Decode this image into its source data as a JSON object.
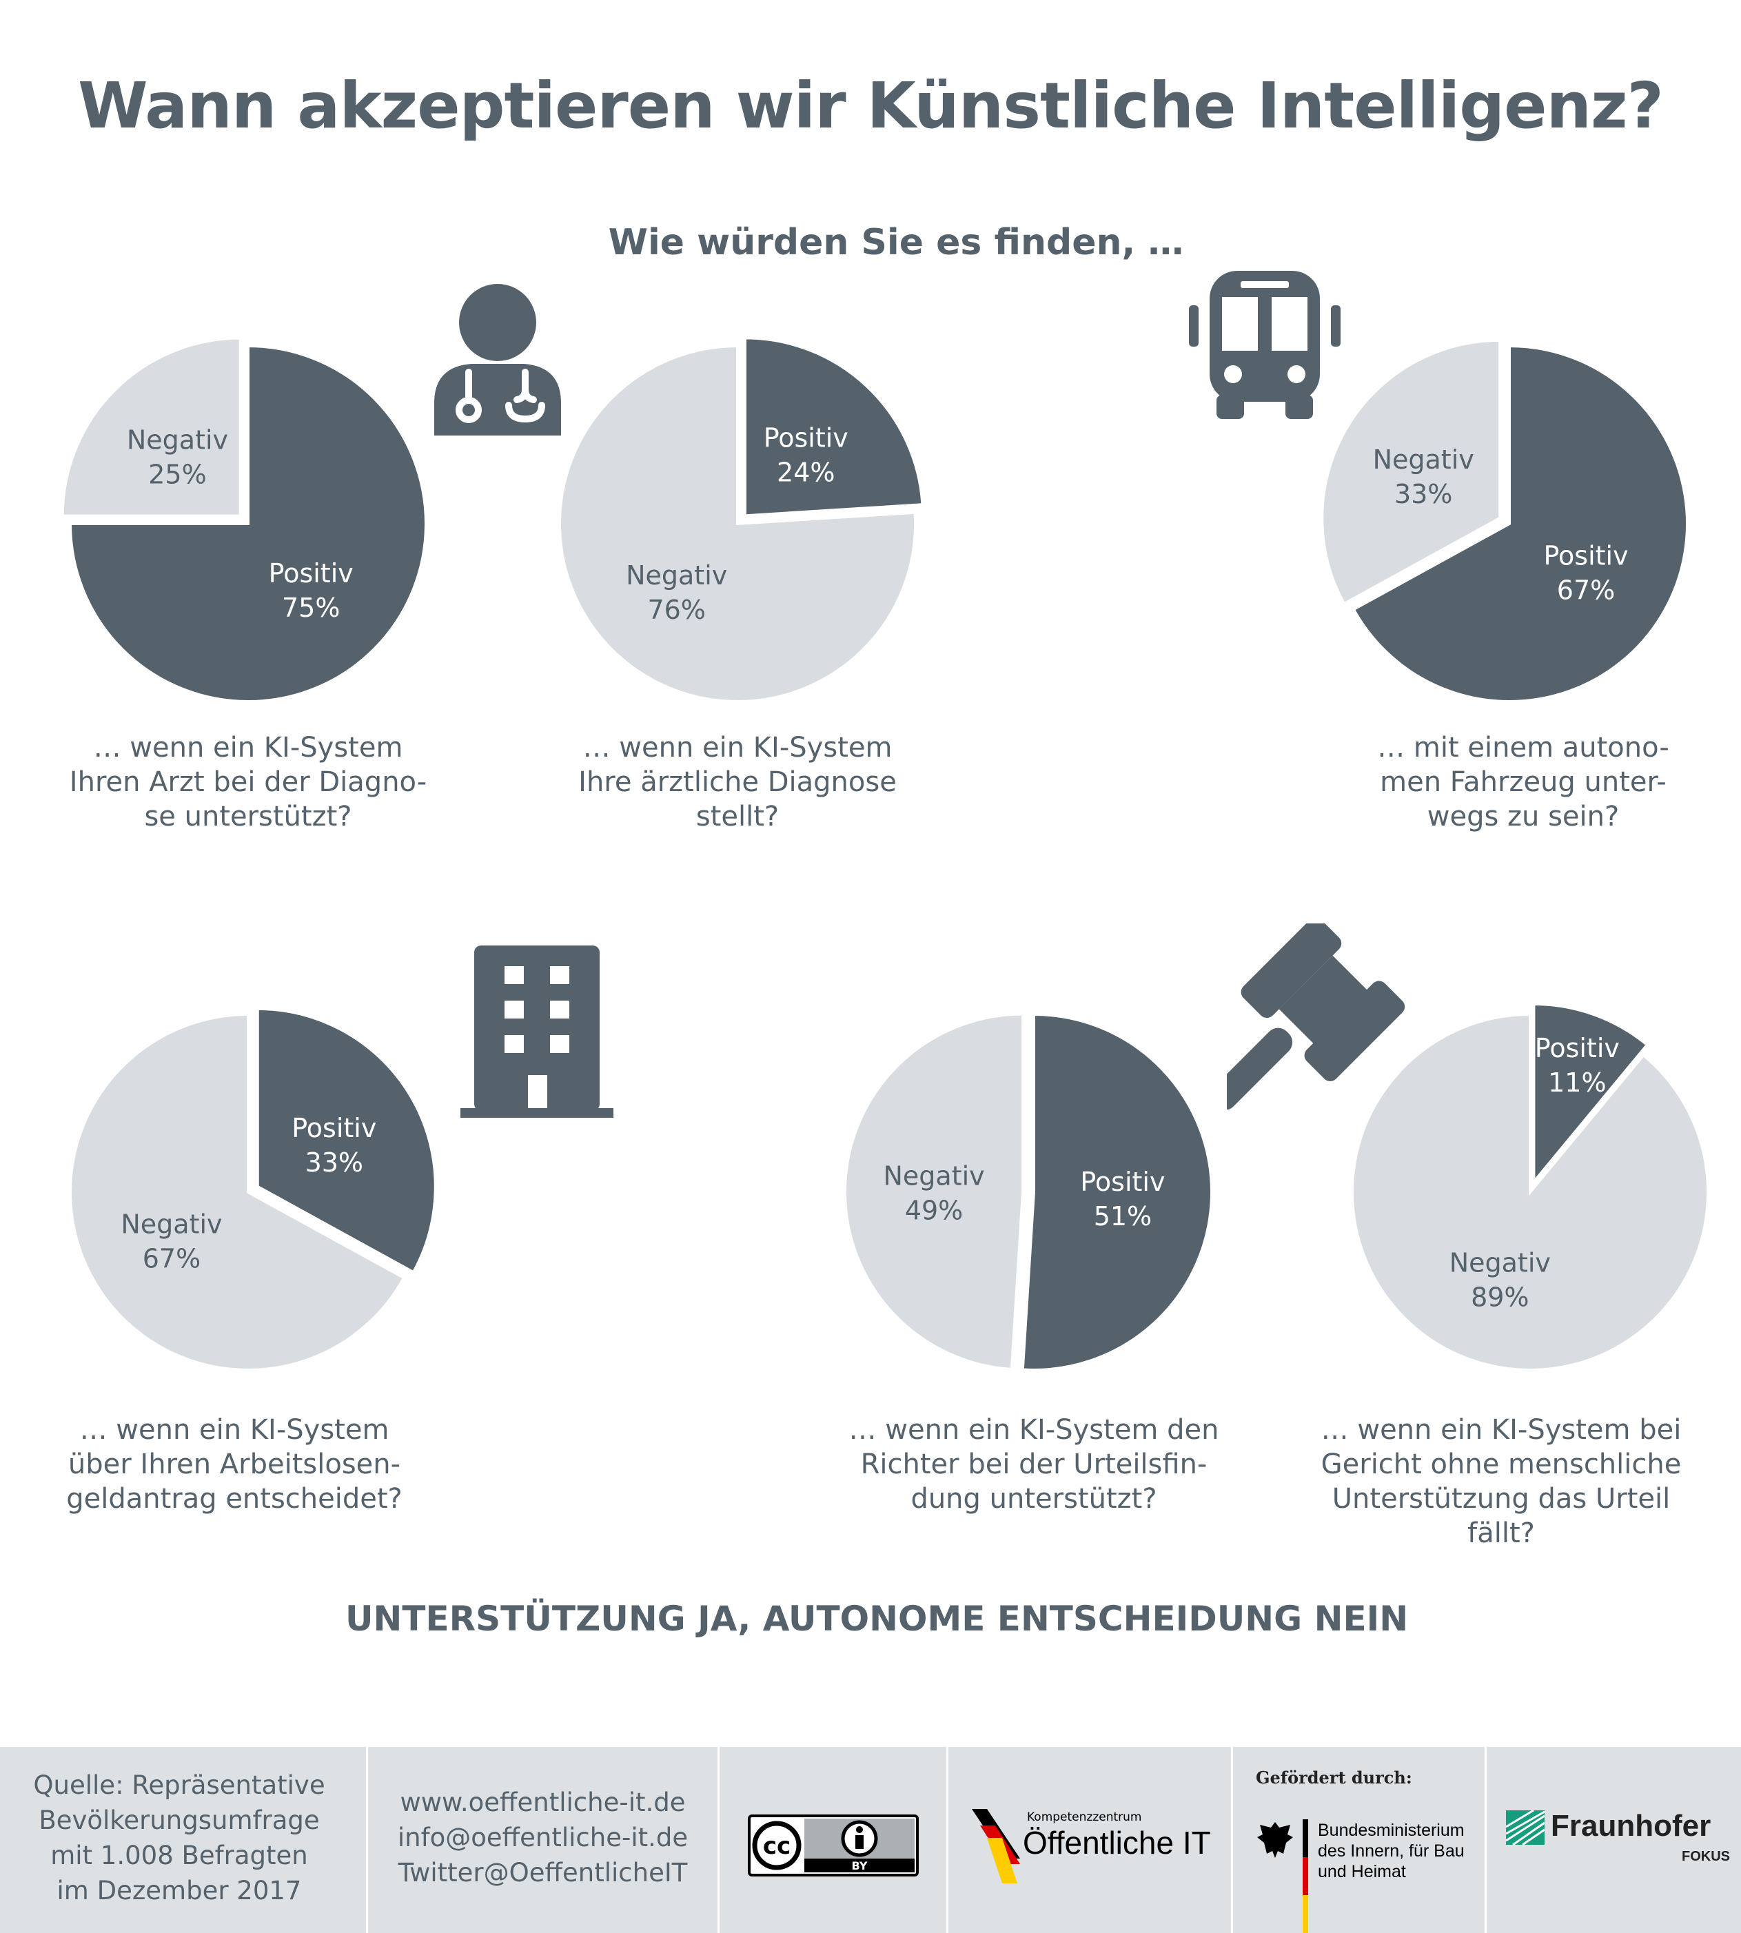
{
  "title": "Wann akzeptieren wir Künstliche Intelligenz?",
  "subtitle": "Wie würden Sie es finden, …",
  "conclusion": "UNTERSTÜTZUNG JA, AUTONOME ENTSCHEIDUNG NEIN",
  "colors": {
    "positive": "#55626c",
    "negative": "#d9dde1",
    "text": "#55626c",
    "footer_bg": "#dde1e4"
  },
  "icons": [
    "doctor-icon",
    "bus-icon",
    "building-icon",
    "gavel-icon"
  ],
  "chart_data": [
    {
      "type": "pie",
      "question": "… wenn ein KI-System\nIhren Arzt bei der Diagno-\nse unterstützt?",
      "slices": [
        {
          "label": "Positiv",
          "value": 75,
          "pct": "75%"
        },
        {
          "label": "Negativ",
          "value": 25,
          "pct": "25%"
        }
      ],
      "exploded": "Negativ"
    },
    {
      "type": "pie",
      "question": "… wenn ein KI-System\nIhre ärztliche Diagnose\nstellt?",
      "slices": [
        {
          "label": "Positiv",
          "value": 24,
          "pct": "24%"
        },
        {
          "label": "Negativ",
          "value": 76,
          "pct": "76%"
        }
      ],
      "exploded": "Positiv"
    },
    {
      "type": "pie",
      "question": "… mit einem autono-\nmen Fahrzeug unter-\nwegs zu sein?",
      "slices": [
        {
          "label": "Positiv",
          "value": 67,
          "pct": "67%"
        },
        {
          "label": "Negativ",
          "value": 33,
          "pct": "33%"
        }
      ],
      "exploded": "Negativ"
    },
    {
      "type": "pie",
      "question": "… wenn ein KI-System\nüber Ihren Arbeitslosen-\ngeldantrag entscheidet?",
      "slices": [
        {
          "label": "Positiv",
          "value": 33,
          "pct": "33%"
        },
        {
          "label": "Negativ",
          "value": 67,
          "pct": "67%"
        }
      ],
      "exploded": "Positiv"
    },
    {
      "type": "pie",
      "question": "… wenn ein KI-System den\nRichter bei der Urteilsfin-\ndung unterstützt?",
      "slices": [
        {
          "label": "Positiv",
          "value": 51,
          "pct": "51%"
        },
        {
          "label": "Negativ",
          "value": 49,
          "pct": "49%"
        }
      ],
      "exploded": "Negativ"
    },
    {
      "type": "pie",
      "question": "… wenn ein KI-System bei\nGericht ohne menschliche\nUnterstützung das Urteil\nfällt?",
      "slices": [
        {
          "label": "Positiv",
          "value": 11,
          "pct": "11%"
        },
        {
          "label": "Negativ",
          "value": 89,
          "pct": "89%"
        }
      ],
      "exploded": "Positiv"
    }
  ],
  "footer": {
    "source_lines": [
      "Quelle: Repräsentative",
      "Bevölkerungsumfrage",
      "mit 1.008 Befragten",
      "im Dezember 2017"
    ],
    "contact_lines": [
      "www.oeffentliche-it.de",
      "info@oeffentliche-it.de",
      "Twitter@OeffentlicheIT"
    ],
    "cc_badge": "BY",
    "kompetenz_small": "Kompetenzzentrum",
    "kompetenz_big": "Öffentliche IT",
    "funded_by": "Gefördert durch:",
    "ministry_lines": [
      "Bundesministerium",
      "des Innern, für Bau",
      "und Heimat"
    ],
    "fraunhofer": "Fraunhofer",
    "fokus": "FOKUS"
  }
}
